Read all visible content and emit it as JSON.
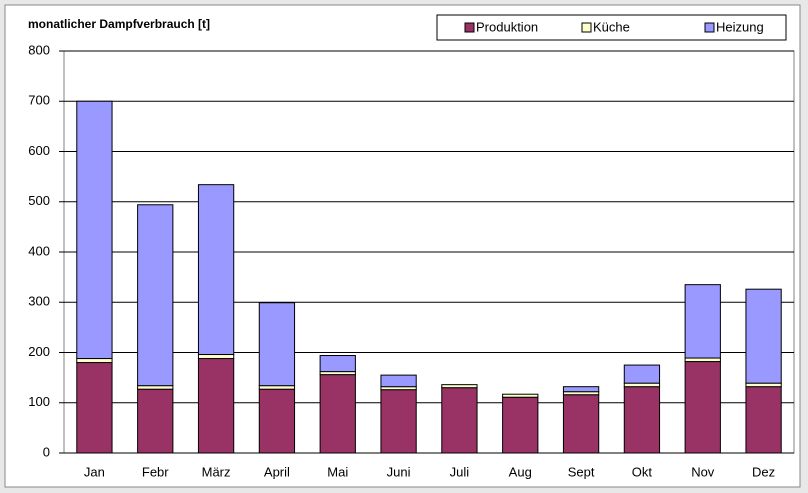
{
  "chart_data": {
    "type": "stacked_bar",
    "title": "monatlicher Dampfverbrauch [t]",
    "categories": [
      "Jan",
      "Febr",
      "März",
      "April",
      "Mai",
      "Juni",
      "Juli",
      "Aug",
      "Sept",
      "Okt",
      "Nov",
      "Dez"
    ],
    "series": [
      {
        "name": "Produktion",
        "color": "#993366",
        "values": [
          180,
          127,
          188,
          127,
          156,
          126,
          130,
          111,
          116,
          132,
          182,
          132
        ]
      },
      {
        "name": "Küche",
        "color": "#ffffcc",
        "values": [
          8,
          7,
          8,
          7,
          6,
          6,
          6,
          6,
          6,
          7,
          7,
          7
        ]
      },
      {
        "name": "Heizung",
        "color": "#9999ff",
        "values": [
          512,
          360,
          338,
          165,
          32,
          23,
          0,
          0,
          10,
          36,
          146,
          187
        ]
      }
    ],
    "ylim": [
      0,
      800
    ],
    "yticks": [
      0,
      100,
      200,
      300,
      400,
      500,
      600,
      700,
      800
    ],
    "grid": true,
    "legend": "top-right"
  }
}
